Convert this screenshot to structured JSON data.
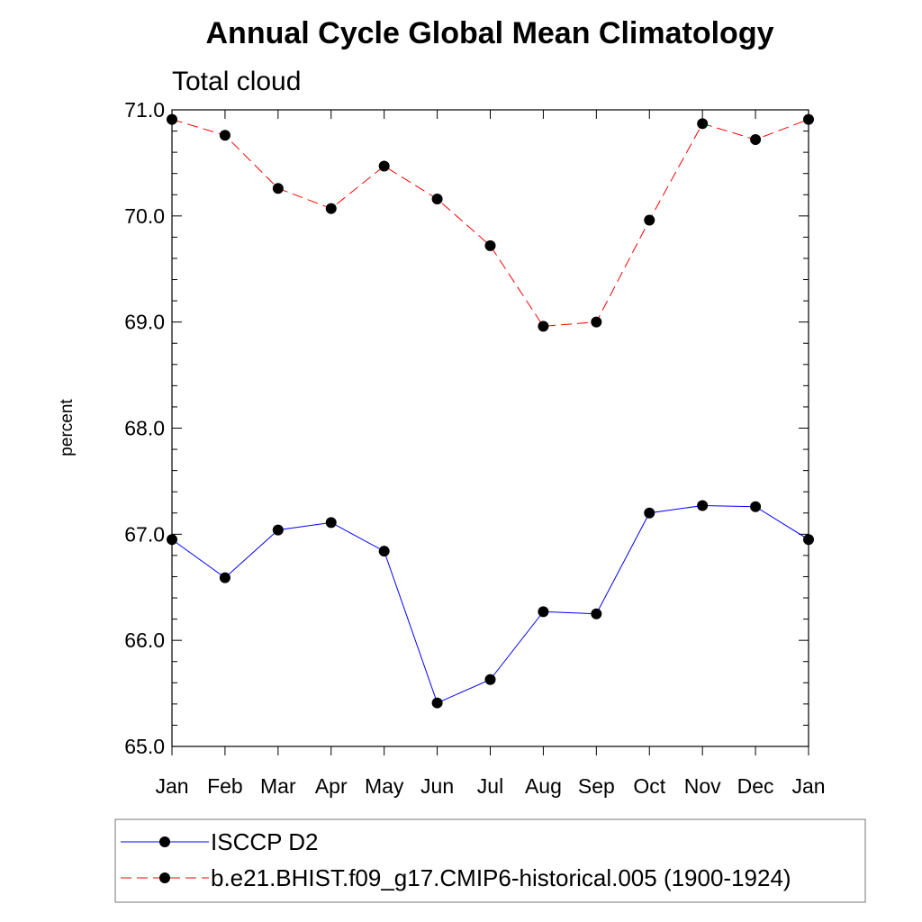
{
  "chart_data": {
    "type": "line",
    "title": "Annual Cycle Global Mean Climatology",
    "subtitle": "Total cloud",
    "xlabel": "",
    "ylabel": "percent",
    "categories": [
      "Jan",
      "Feb",
      "Mar",
      "Apr",
      "May",
      "Jun",
      "Jul",
      "Aug",
      "Sep",
      "Oct",
      "Nov",
      "Dec",
      "Jan"
    ],
    "yticks": [
      "65.0",
      "66.0",
      "67.0",
      "68.0",
      "69.0",
      "70.0",
      "71.0"
    ],
    "ylim": [
      65.0,
      71.0
    ],
    "grid": false,
    "legend_position": "bottom",
    "series": [
      {
        "name": "ISCCP D2",
        "color": "#0000ff",
        "line_style": "solid",
        "marker": "circle",
        "values": [
          66.95,
          66.59,
          67.04,
          67.11,
          66.84,
          65.41,
          65.63,
          66.27,
          66.25,
          67.2,
          67.27,
          67.26,
          66.95
        ]
      },
      {
        "name": "b.e21.BHIST.f09_g17.CMIP6-historical.005 (1900-1924)",
        "color": "#ff0000",
        "line_style": "dashed",
        "marker": "circle",
        "values": [
          70.91,
          70.76,
          70.26,
          70.07,
          70.47,
          70.16,
          69.72,
          68.96,
          69.0,
          69.96,
          70.87,
          70.72,
          70.91
        ]
      }
    ]
  }
}
